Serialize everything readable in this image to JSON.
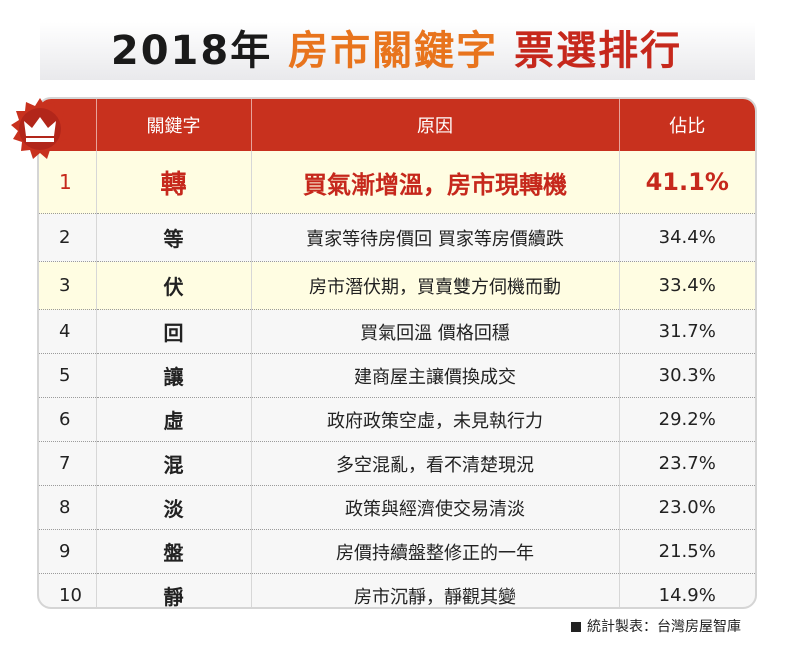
{
  "title": {
    "year": "2018年",
    "keyword": "房市關鍵字",
    "rank": "票選排行"
  },
  "table": {
    "headers": [
      "",
      "關鍵字",
      "原因",
      "佔比"
    ],
    "rows": [
      {
        "rank": "1",
        "keyword": "轉",
        "reason": "買氣漸增溫，房市現轉機",
        "share": "41.1%"
      },
      {
        "rank": "2",
        "keyword": "等",
        "reason": "賣家等待房價回 買家等房價續跌",
        "share": "34.4%"
      },
      {
        "rank": "3",
        "keyword": "伏",
        "reason": "房市潛伏期，買賣雙方伺機而動",
        "share": "33.4%"
      },
      {
        "rank": "4",
        "keyword": "回",
        "reason": "買氣回溫 價格回穩",
        "share": "31.7%"
      },
      {
        "rank": "5",
        "keyword": "讓",
        "reason": "建商屋主讓價換成交",
        "share": "30.3%"
      },
      {
        "rank": "6",
        "keyword": "虛",
        "reason": "政府政策空虛，未見執行力",
        "share": "29.2%"
      },
      {
        "rank": "7",
        "keyword": "混",
        "reason": "多空混亂，看不清楚現況",
        "share": "23.7%"
      },
      {
        "rank": "8",
        "keyword": "淡",
        "reason": "政策與經濟使交易清淡",
        "share": "23.0%"
      },
      {
        "rank": "9",
        "keyword": "盤",
        "reason": "房價持續盤整修正的一年",
        "share": "21.5%"
      },
      {
        "rank": "10",
        "keyword": "靜",
        "reason": "房市沉靜，靜觀其變",
        "share": "14.9%"
      }
    ]
  },
  "source": "統計製表：台灣房屋智庫",
  "colors": {
    "header_red": "#c8311e",
    "highlight_yellow": "#fffde2",
    "top_text_red": "#c6281c",
    "title_orange": "#e8741d"
  },
  "icons": {
    "badge": "crown-badge-icon"
  }
}
